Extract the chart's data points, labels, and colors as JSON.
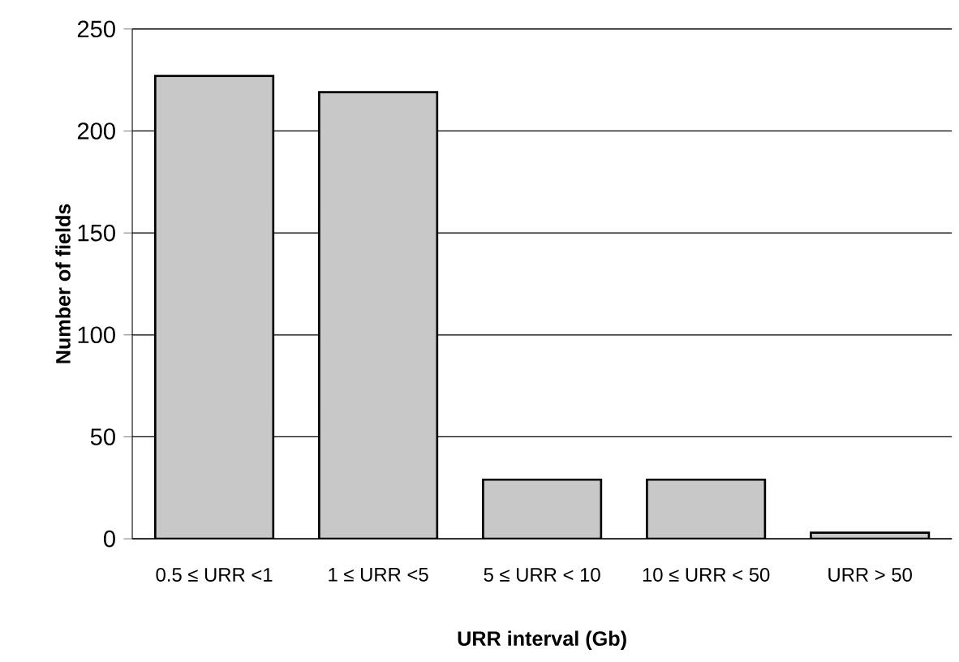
{
  "chart_data": {
    "type": "bar",
    "xlabel": "URR interval (Gb)",
    "ylabel": "Number of fields",
    "categories": [
      "0.5 ≤ URR <1",
      "1 ≤ URR <5",
      "5 ≤ URR < 10",
      "10 ≤ URR < 50",
      "URR > 50"
    ],
    "values": [
      227,
      219,
      29,
      29,
      3
    ],
    "color": "#c8c8c8",
    "ylim": [
      0,
      250
    ],
    "yticks": [
      0,
      50,
      100,
      150,
      200,
      250
    ],
    "grid": "y"
  }
}
